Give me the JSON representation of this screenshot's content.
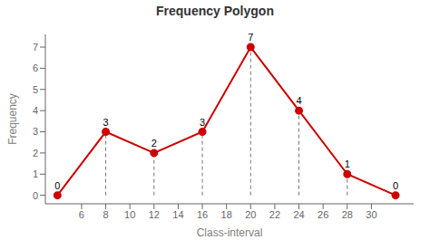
{
  "chart_data": {
    "type": "line",
    "title": "Frequency Polygon",
    "xlabel": "Class-interval",
    "ylabel": "Frequency",
    "x": [
      4,
      8,
      12,
      16,
      20,
      24,
      28,
      32
    ],
    "values": [
      0,
      3,
      2,
      3,
      7,
      4,
      1,
      0
    ],
    "color": "#cc0000",
    "marker": "circle",
    "data_labels": true,
    "xlim": [
      3,
      33.5
    ],
    "xticks": [
      6,
      8,
      10,
      12,
      14,
      16,
      18,
      20,
      22,
      24,
      26,
      28,
      30
    ],
    "ylim": [
      -0.4,
      7.6
    ],
    "yticks": [
      0,
      1,
      2,
      3,
      4,
      5,
      6,
      7
    ]
  }
}
